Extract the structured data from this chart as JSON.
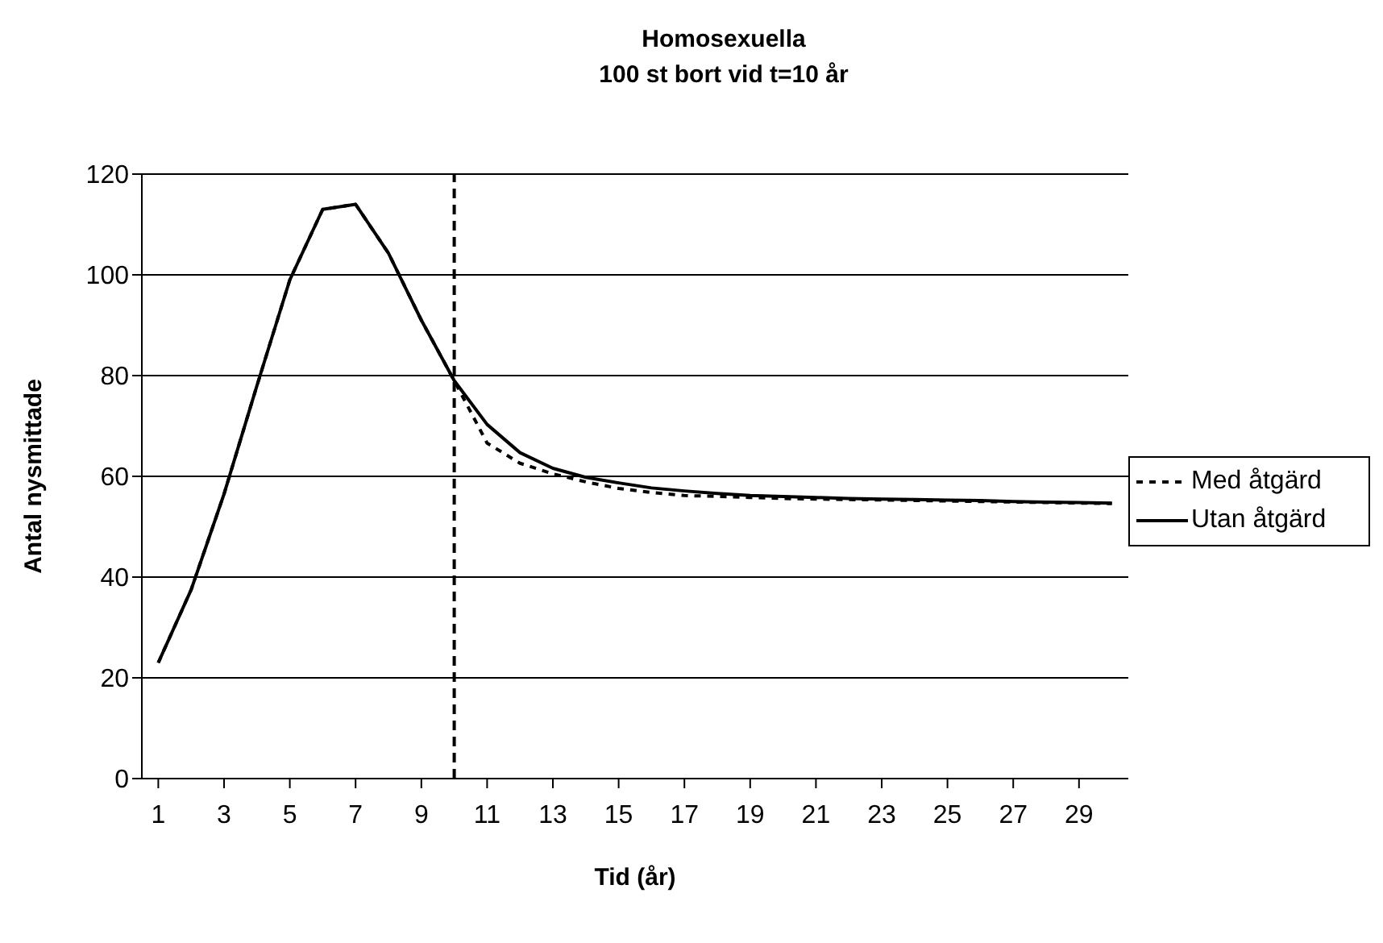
{
  "chart_data": {
    "type": "line",
    "title": "Homosexuella",
    "subtitle": "100 st bort vid t=10 år",
    "xlabel": "Tid (år)",
    "ylabel": "Antal nysmittade",
    "x": [
      1,
      2,
      3,
      4,
      5,
      6,
      7,
      8,
      9,
      10,
      11,
      12,
      13,
      14,
      15,
      16,
      17,
      18,
      19,
      20,
      21,
      22,
      23,
      24,
      25,
      26,
      27,
      28,
      29,
      30
    ],
    "xlim": [
      0.5,
      30.5
    ],
    "xticks": [
      1,
      3,
      5,
      7,
      9,
      11,
      13,
      15,
      17,
      19,
      21,
      23,
      25,
      27,
      29
    ],
    "ylim": [
      0,
      120
    ],
    "yticks": [
      0,
      20,
      40,
      60,
      80,
      100,
      120
    ],
    "grid": "y",
    "legend": "right",
    "marker": "none",
    "ref_lines": [
      {
        "axis": "x",
        "value": 10,
        "color": "#000000",
        "line_style": "dashed"
      }
    ],
    "series": [
      {
        "name": "Med åtgärd",
        "color": "#000000",
        "line_style": "dotted",
        "values": [
          23,
          37.5,
          56.5,
          78,
          99,
          113,
          114,
          104.3,
          91,
          79,
          66.6,
          62.6,
          60.5,
          58.9,
          57.6,
          56.8,
          56.2,
          56,
          55.8,
          55.6,
          55.5,
          55.4,
          55.3,
          55.2,
          55.1,
          55,
          54.9,
          54.8,
          54.7,
          54.6
        ]
      },
      {
        "name": "Utan åtgärd",
        "color": "#000000",
        "line_style": "solid",
        "values": [
          23,
          37.5,
          56.5,
          78,
          99,
          113,
          114,
          104.3,
          91,
          79,
          70.3,
          64.7,
          61.6,
          59.8,
          58.7,
          57.7,
          57.1,
          56.6,
          56.2,
          56,
          55.8,
          55.6,
          55.5,
          55.4,
          55.3,
          55.2,
          55,
          54.9,
          54.8,
          54.7
        ]
      }
    ]
  }
}
